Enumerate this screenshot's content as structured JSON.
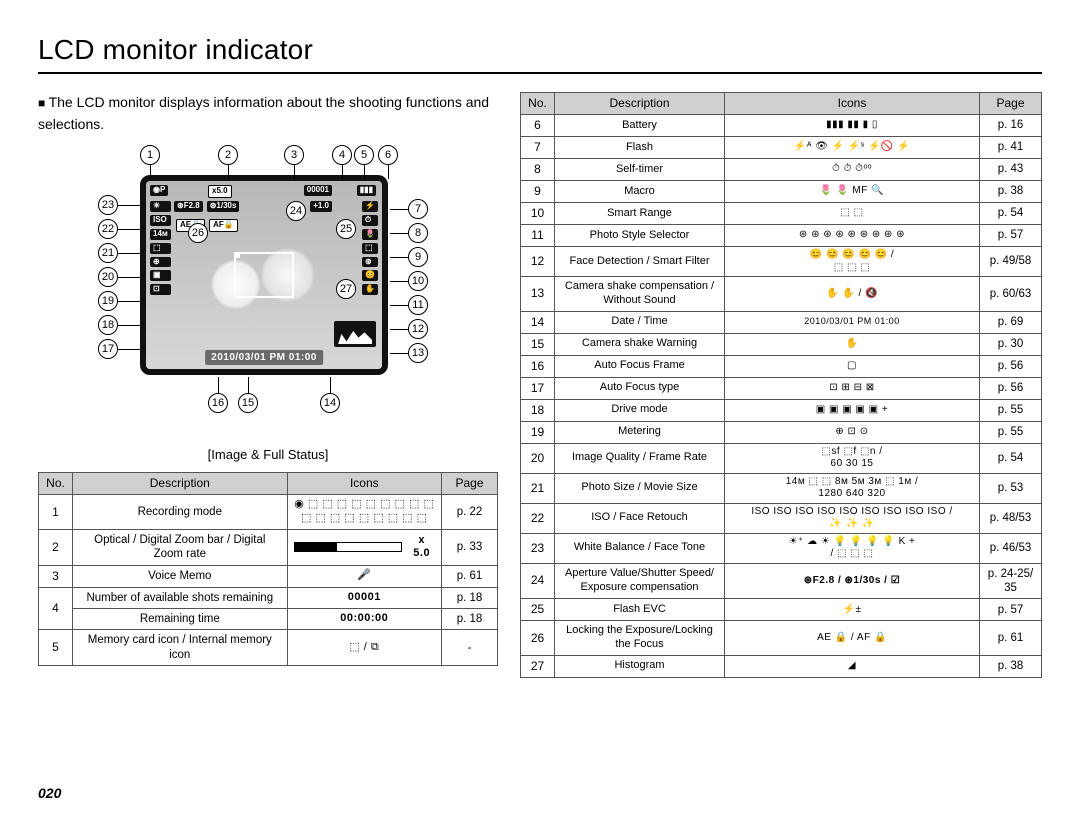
{
  "title": "LCD monitor indicator",
  "intro": "The LCD monitor displays information about the shooting functions and selections.",
  "caption": "[Image & Full Status]",
  "datetime": "2010/03/01  PM 01:00",
  "page_num": "020",
  "table_headers": {
    "no": "No.",
    "desc": "Description",
    "icons": "Icons",
    "page": "Page"
  },
  "callout_top": [
    "1",
    "2",
    "3",
    "4",
    "5",
    "6"
  ],
  "callout_right": [
    "7",
    "8",
    "9",
    "10",
    "11",
    "12",
    "13"
  ],
  "callout_left": [
    "23",
    "22",
    "21",
    "20",
    "19",
    "18",
    "17"
  ],
  "callout_bottom": [
    "16",
    "15",
    "14"
  ],
  "callout_inner": [
    "24",
    "25",
    "26",
    "27"
  ],
  "osd": {
    "top_left": "◉P",
    "aperture": "⊛F2.8",
    "shutter": "⊛1/30s",
    "zoom": "x5.0",
    "count": "00001",
    "ev": "+1.0",
    "ae": "AE🔒",
    "af": "AF🔒"
  },
  "left_rows": [
    {
      "no": "1",
      "desc": "Recording mode",
      "icons": "◉ ⬚ ⬚ ⬚ ⬚ ⬚ ⬚ ⬚ ⬚ ⬚\n⬚ ⬚ ⬚ ⬚ ⬚ ⬚ ⬚ ⬚ ⬚",
      "page": "p. 22"
    },
    {
      "no": "2",
      "desc": "Optical / Digital Zoom bar / Digital Zoom rate",
      "icons": "ZOOMBAR",
      "page": "p. 33"
    },
    {
      "no": "3",
      "desc": "Voice Memo",
      "icons": "🎤",
      "page": "p. 61"
    },
    {
      "no": "4",
      "desc": "Number of available shots remaining",
      "icons": "00001",
      "page": "p. 18",
      "iconsBold": true
    },
    {
      "no": "",
      "desc": "Remaining time",
      "icons": "00:00:00",
      "page": "p. 18",
      "iconsBold": true
    },
    {
      "no": "5",
      "desc": "Memory card icon / Internal memory icon",
      "icons": "⬚ / ⧉",
      "page": "-"
    }
  ],
  "right_rows": [
    {
      "no": "6",
      "desc": "Battery",
      "icons": "▮▮▮  ▮▮  ▮  ▯",
      "page": "p. 16"
    },
    {
      "no": "7",
      "desc": "Flash",
      "icons": "⚡ᴬ  👁  ⚡  ⚡ˢ  ⚡🚫  ⚡",
      "page": "p. 41"
    },
    {
      "no": "8",
      "desc": "Self-timer",
      "icons": "⏱  ⏱  ⏱ᵒᵒ",
      "page": "p. 43"
    },
    {
      "no": "9",
      "desc": "Macro",
      "icons": "🌷  🌷  MF  🔍",
      "page": "p. 38"
    },
    {
      "no": "10",
      "desc": "Smart Range",
      "icons": "⬚  ⬚",
      "page": "p. 54"
    },
    {
      "no": "11",
      "desc": "Photo Style Selector",
      "icons": "⊛ ⊛ ⊛ ⊛ ⊛ ⊛ ⊛ ⊛ ⊛",
      "page": "p. 57"
    },
    {
      "no": "12",
      "desc": "Face Detection / Smart Filter",
      "icons": "😊 😊 😊 😊 😊 /\n⬚ ⬚ ⬚",
      "page": "p. 49/58"
    },
    {
      "no": "13",
      "desc": "Camera shake compensation / Without Sound",
      "icons": "✋ ✋ / 🔇",
      "page": "p. 60/63"
    },
    {
      "no": "14",
      "desc": "Date / Time",
      "icons": "2010/03/01 PM 01:00",
      "page": "p. 69",
      "iconsTiny": true
    },
    {
      "no": "15",
      "desc": "Camera shake Warning",
      "icons": "✋",
      "page": "p. 30"
    },
    {
      "no": "16",
      "desc": "Auto Focus Frame",
      "icons": "▢",
      "page": "p. 56"
    },
    {
      "no": "17",
      "desc": "Auto Focus type",
      "icons": "⊡  ⊞  ⊟  ⊠",
      "page": "p. 56"
    },
    {
      "no": "18",
      "desc": "Drive mode",
      "icons": "▣  ▣  ▣  ▣  ▣ +",
      "page": "p. 55"
    },
    {
      "no": "19",
      "desc": "Metering",
      "icons": "⊕  ⊡  ⊙",
      "page": "p. 55"
    },
    {
      "no": "20",
      "desc": "Image Quality / Frame Rate",
      "icons": "⬚sf  ⬚f  ⬚n /\n60  30  15",
      "page": "p. 54"
    },
    {
      "no": "21",
      "desc": "Photo Size / Movie Size",
      "icons": "14м ⬚ ⬚ 8м 5м 3м ⬚ 1м /\n1280  640  320",
      "page": "p. 53"
    },
    {
      "no": "22",
      "desc": "ISO / Face Retouch",
      "icons": "ISO ISO ISO ISO ISO ISO ISO ISO ISO /\n✨ ✨ ✨",
      "page": "p. 48/53"
    },
    {
      "no": "23",
      "desc": "White Balance / Face Tone",
      "icons": "☀⁺ ☁ ☀ 💡 💡 💡 💡 K +\n/ ⬚ ⬚ ⬚",
      "page": "p. 46/53"
    },
    {
      "no": "24",
      "desc": "Aperture Value/Shutter Speed/ Exposure compensation",
      "icons": "⊛F2.8 / ⊛1/30s / ☑",
      "page": "p. 24-25/ 35",
      "iconsBold": true
    },
    {
      "no": "25",
      "desc": "Flash EVC",
      "icons": "⚡±",
      "page": "p. 57"
    },
    {
      "no": "26",
      "desc": "Locking the Exposure/Locking the Focus",
      "icons": "AE 🔒 / AF 🔒",
      "page": "p. 61",
      "descTiny": true
    },
    {
      "no": "27",
      "desc": "Histogram",
      "icons": "◢",
      "page": "p. 38"
    }
  ]
}
